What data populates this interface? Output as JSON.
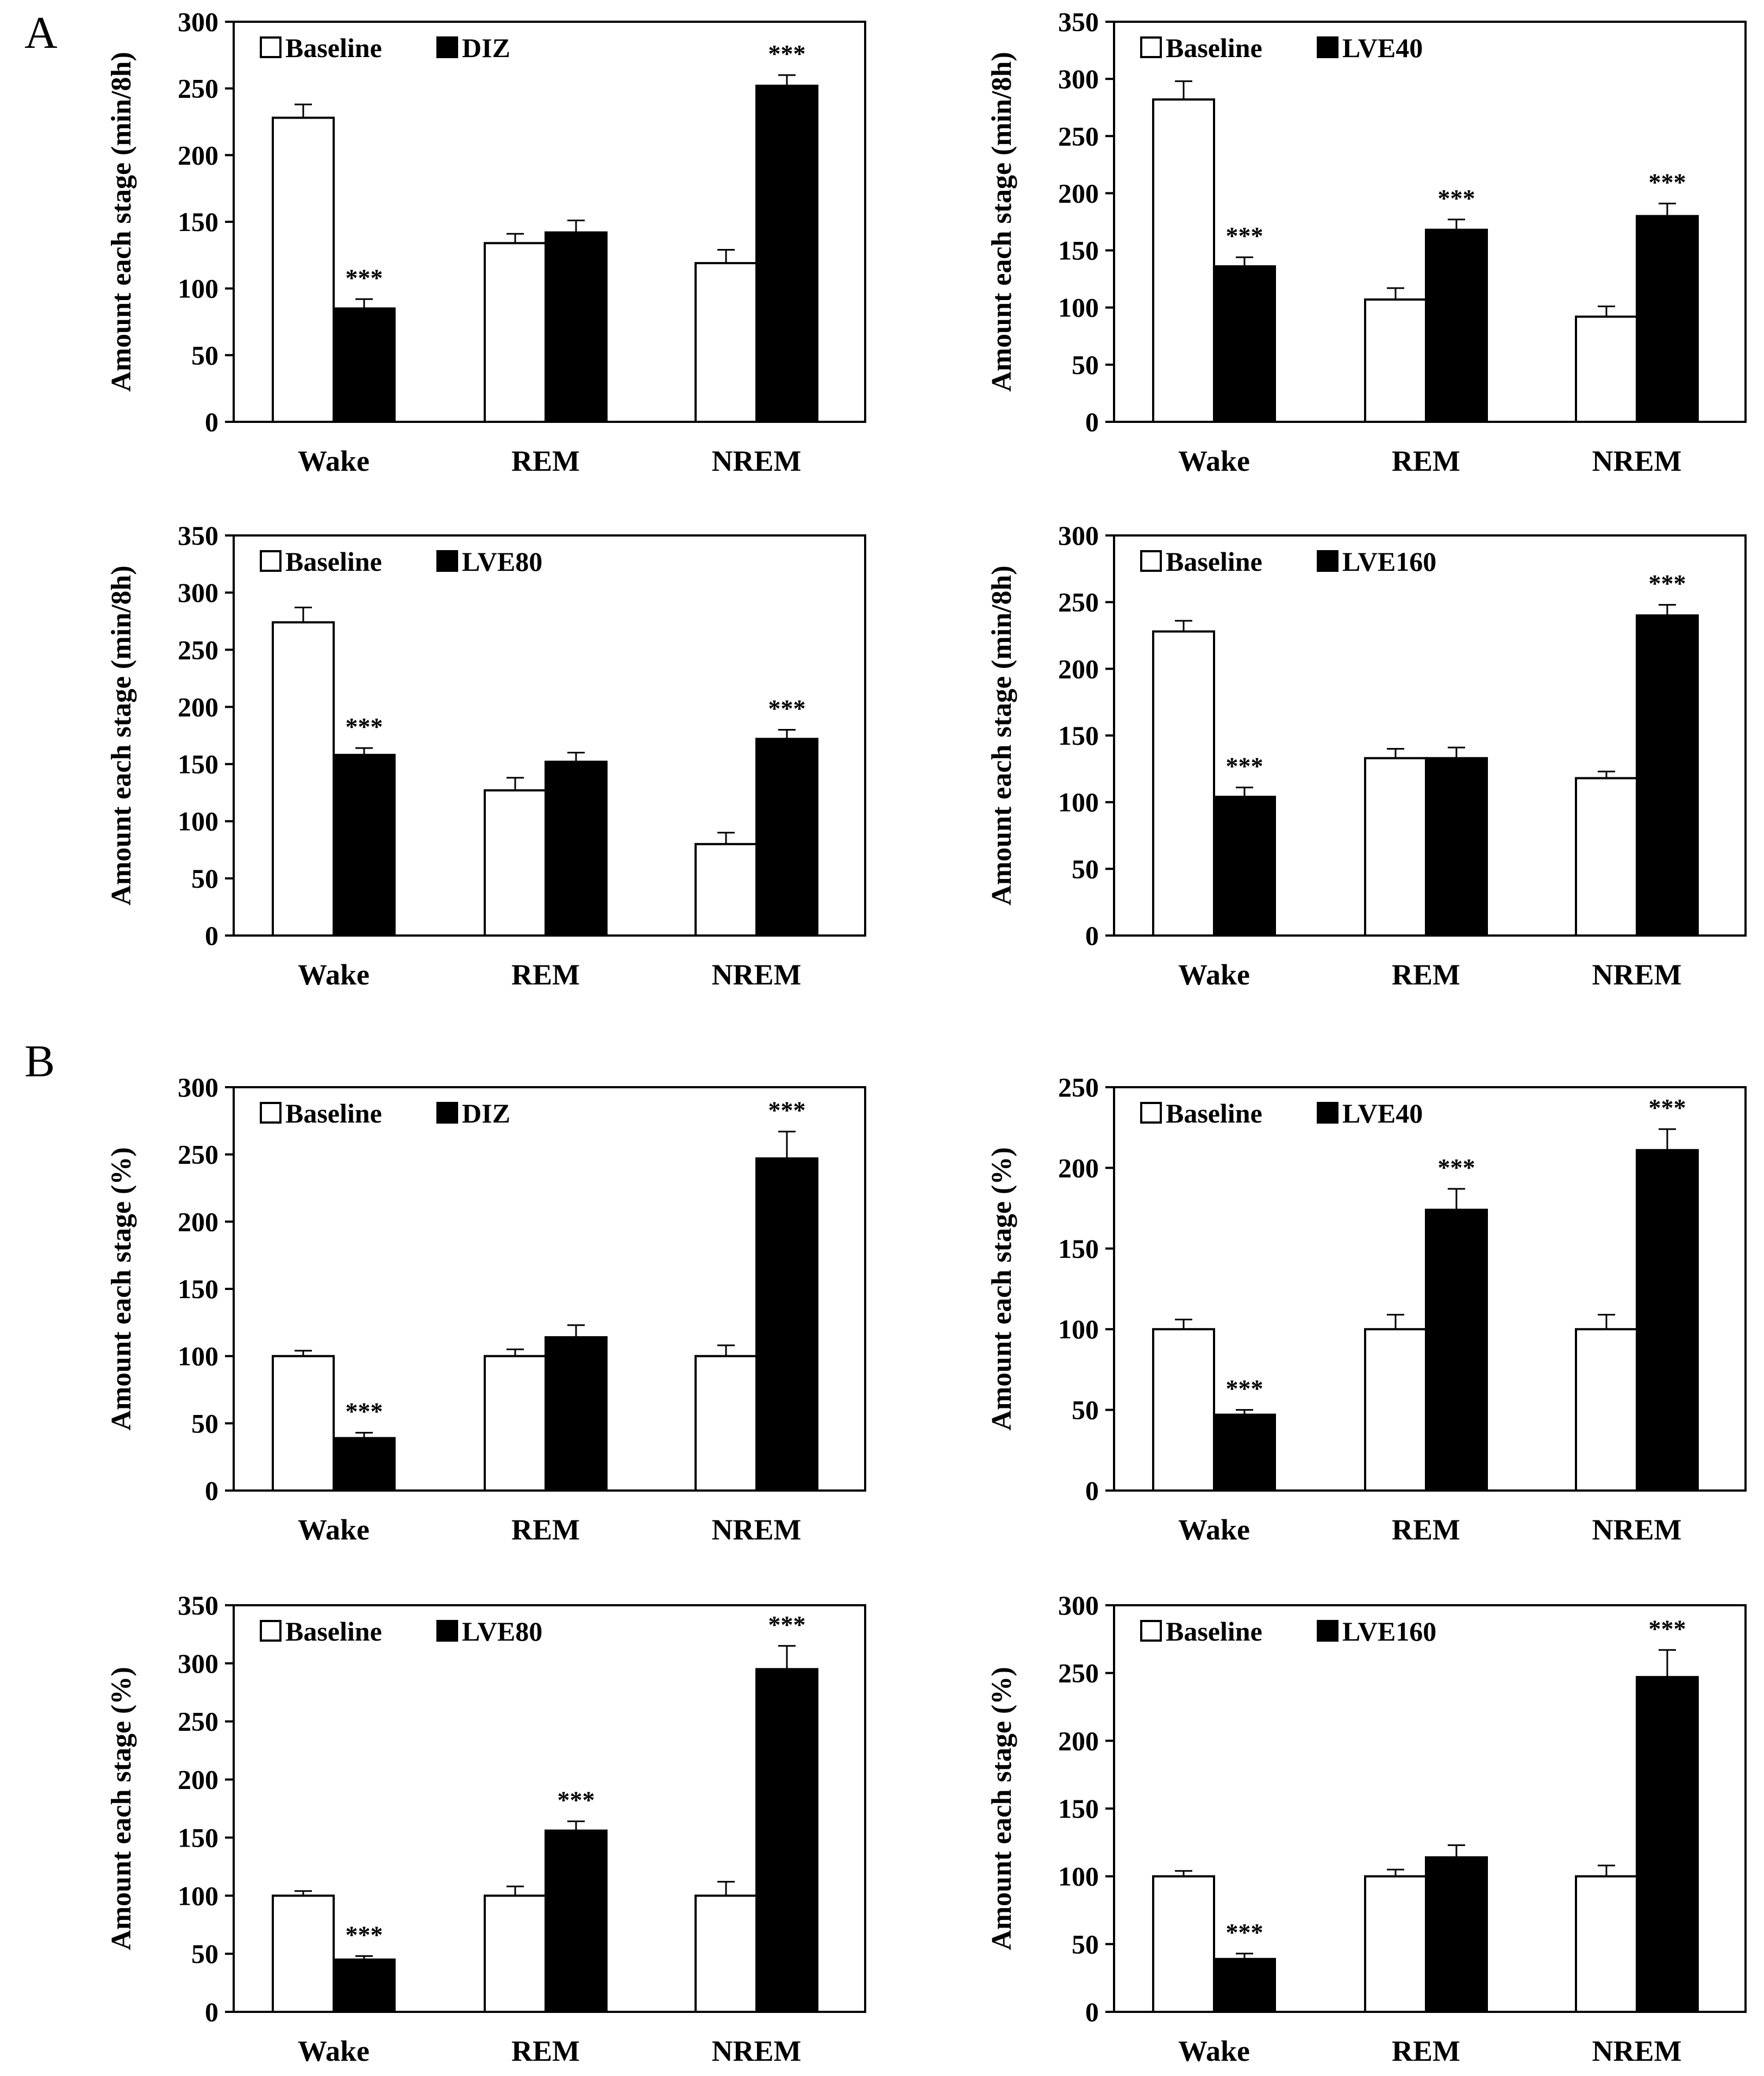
{
  "panel_labels": [
    "A",
    "B"
  ],
  "colors": {
    "baseline": "#ffffff",
    "treatment": "#000000",
    "axis": "#000000"
  },
  "chart_data": [
    {
      "type": "bar",
      "panel": "A",
      "ylabel": "Amount each stage (min/8h)",
      "ylim": [
        0,
        300
      ],
      "yticks": [
        "0",
        "50",
        "100",
        "150",
        "200",
        "250",
        "300"
      ],
      "categories": [
        "Wake",
        "REM",
        "NREM"
      ],
      "legend": "top-left",
      "series": [
        {
          "name": "Baseline",
          "values": [
            228,
            134,
            119
          ],
          "errors": [
            10,
            7,
            10
          ]
        },
        {
          "name": "DIZ",
          "values": [
            85,
            142,
            252
          ],
          "errors": [
            7,
            9,
            8
          ]
        }
      ],
      "significance": [
        "***",
        "",
        "***"
      ]
    },
    {
      "type": "bar",
      "panel": "A",
      "ylabel": "Amount each stage (min/8h)",
      "ylim": [
        0,
        350
      ],
      "yticks": [
        "0",
        "50",
        "100",
        "150",
        "200",
        "250",
        "300",
        "350"
      ],
      "categories": [
        "Wake",
        "REM",
        "NREM"
      ],
      "legend": "top-left",
      "series": [
        {
          "name": "Baseline",
          "values": [
            282,
            107,
            92
          ],
          "errors": [
            16,
            10,
            9
          ]
        },
        {
          "name": "LVE40",
          "values": [
            136,
            168,
            180
          ],
          "errors": [
            8,
            9,
            11
          ]
        }
      ],
      "significance": [
        "***",
        "***",
        "***"
      ]
    },
    {
      "type": "bar",
      "panel": "A",
      "ylabel": "Amount each stage (min/8h)",
      "ylim": [
        0,
        350
      ],
      "yticks": [
        "0",
        "50",
        "100",
        "150",
        "200",
        "250",
        "300",
        "350"
      ],
      "categories": [
        "Wake",
        "REM",
        "NREM"
      ],
      "legend": "top-left",
      "series": [
        {
          "name": "Baseline",
          "values": [
            274,
            127,
            80
          ],
          "errors": [
            13,
            11,
            10
          ]
        },
        {
          "name": "LVE80",
          "values": [
            158,
            152,
            172
          ],
          "errors": [
            6,
            8,
            8
          ]
        }
      ],
      "significance": [
        "***",
        "",
        "***"
      ]
    },
    {
      "type": "bar",
      "panel": "A",
      "ylabel": "Amount each stage (min/8h)",
      "ylim": [
        0,
        300
      ],
      "yticks": [
        "0",
        "50",
        "100",
        "150",
        "200",
        "250",
        "300"
      ],
      "categories": [
        "Wake",
        "REM",
        "NREM"
      ],
      "legend": "top-left",
      "series": [
        {
          "name": "Baseline",
          "values": [
            228,
            133,
            118
          ],
          "errors": [
            8,
            7,
            5
          ]
        },
        {
          "name": "LVE160",
          "values": [
            104,
            133,
            240
          ],
          "errors": [
            7,
            8,
            8
          ]
        }
      ],
      "significance": [
        "***",
        "",
        "***"
      ]
    },
    {
      "type": "bar",
      "panel": "B",
      "ylabel": "Amount each stage (%)",
      "ylim": [
        0,
        300
      ],
      "yticks": [
        "0",
        "50",
        "100",
        "150",
        "200",
        "250",
        "300"
      ],
      "categories": [
        "Wake",
        "REM",
        "NREM"
      ],
      "legend": "top-left",
      "series": [
        {
          "name": "Baseline",
          "values": [
            100,
            100,
            100
          ],
          "errors": [
            4,
            5,
            8
          ]
        },
        {
          "name": "DIZ",
          "values": [
            39,
            114,
            247
          ],
          "errors": [
            4,
            9,
            20
          ]
        }
      ],
      "significance": [
        "***",
        "",
        "***"
      ]
    },
    {
      "type": "bar",
      "panel": "B",
      "ylabel": "Amount each stage (%)",
      "ylim": [
        0,
        250
      ],
      "yticks": [
        "0",
        "50",
        "100",
        "150",
        "200",
        "250"
      ],
      "categories": [
        "Wake",
        "REM",
        "NREM"
      ],
      "legend": "top-left",
      "series": [
        {
          "name": "Baseline",
          "values": [
            100,
            100,
            100
          ],
          "errors": [
            6,
            9,
            9
          ]
        },
        {
          "name": "LVE40",
          "values": [
            47,
            174,
            211
          ],
          "errors": [
            3,
            13,
            13
          ]
        }
      ],
      "significance": [
        "***",
        "***",
        "***"
      ]
    },
    {
      "type": "bar",
      "panel": "B",
      "ylabel": "Amount each stage (%)",
      "ylim": [
        0,
        350
      ],
      "yticks": [
        "0",
        "50",
        "100",
        "150",
        "200",
        "250",
        "300",
        "350"
      ],
      "categories": [
        "Wake",
        "REM",
        "NREM"
      ],
      "legend": "top-left",
      "series": [
        {
          "name": "Baseline",
          "values": [
            100,
            100,
            100
          ],
          "errors": [
            4,
            8,
            12
          ]
        },
        {
          "name": "LVE80",
          "values": [
            45,
            156,
            295
          ],
          "errors": [
            3,
            8,
            20
          ]
        }
      ],
      "significance": [
        "***",
        "***",
        "***"
      ]
    },
    {
      "type": "bar",
      "panel": "B",
      "ylabel": "Amount each stage (%)",
      "ylim": [
        0,
        300
      ],
      "yticks": [
        "0",
        "50",
        "100",
        "150",
        "200",
        "250",
        "300"
      ],
      "categories": [
        "Wake",
        "REM",
        "NREM"
      ],
      "legend": "top-left",
      "series": [
        {
          "name": "Baseline",
          "values": [
            100,
            100,
            100
          ],
          "errors": [
            4,
            5,
            8
          ]
        },
        {
          "name": "LVE160",
          "values": [
            39,
            114,
            247
          ],
          "errors": [
            4,
            9,
            20
          ]
        }
      ],
      "significance": [
        "***",
        "",
        "***"
      ]
    }
  ]
}
